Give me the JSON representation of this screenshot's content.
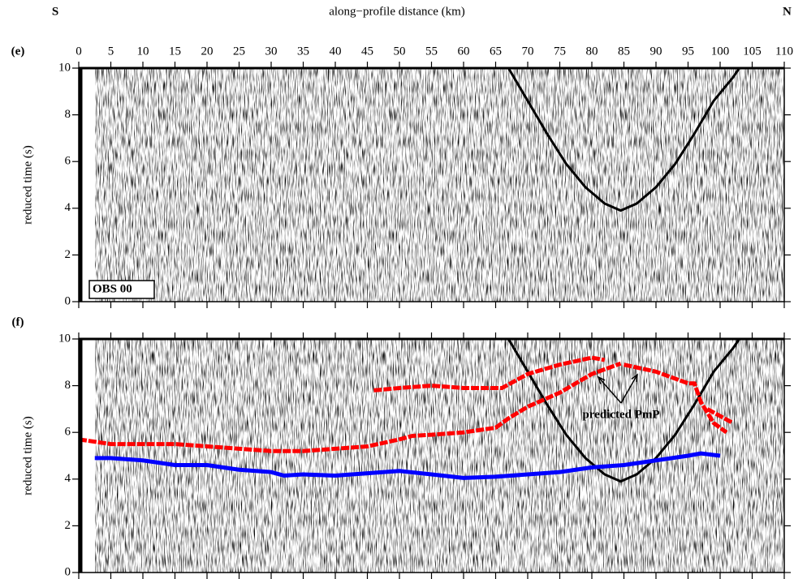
{
  "chart_data": [
    {
      "type": "line",
      "panel_label": "(e)",
      "xlabel": "along−profile distance (km)",
      "ylabel": "reduced time (s)",
      "annotations": [
        "S",
        "N",
        "OBS 00"
      ],
      "xlim": [
        0,
        110
      ],
      "xticks": [
        0,
        5,
        10,
        15,
        20,
        25,
        30,
        35,
        40,
        45,
        50,
        55,
        60,
        65,
        70,
        75,
        80,
        85,
        90,
        95,
        100,
        105,
        110
      ],
      "ylim": [
        0,
        10
      ],
      "yticks": [
        0,
        2,
        4,
        6,
        8,
        10
      ],
      "xtick_labels": true,
      "series": [
        {
          "color": "#000000",
          "x": [
            67,
            70,
            73,
            76,
            79,
            82,
            84.5,
            87,
            90,
            93,
            96,
            99,
            102,
            103
          ],
          "values": [
            10,
            8.6,
            7.2,
            5.9,
            4.9,
            4.2,
            3.9,
            4.2,
            4.9,
            5.9,
            7.2,
            8.6,
            9.6,
            10
          ]
        }
      ]
    },
    {
      "type": "line",
      "panel_label": "(f)",
      "ylabel": "reduced time (s)",
      "annotations": [
        "predicted PmP"
      ],
      "xlim": [
        0,
        110
      ],
      "xticks": [
        0,
        5,
        10,
        15,
        20,
        25,
        30,
        35,
        40,
        45,
        50,
        55,
        60,
        65,
        70,
        75,
        80,
        85,
        90,
        95,
        100,
        105,
        110
      ],
      "ylim": [
        0,
        10
      ],
      "yticks": [
        0,
        2,
        4,
        6,
        8,
        10
      ],
      "xtick_labels": false,
      "series": [
        {
          "color": "#000000",
          "x": [
            67,
            70,
            73,
            76,
            79,
            82,
            84.5,
            87,
            90,
            93,
            96,
            99,
            102,
            103
          ],
          "values": [
            10,
            8.6,
            7.2,
            5.9,
            4.9,
            4.2,
            3.9,
            4.2,
            4.9,
            5.9,
            7.2,
            8.6,
            9.6,
            10
          ]
        },
        {
          "color": "#ff0000",
          "x": [
            46,
            50,
            55,
            60,
            66,
            70,
            75,
            80,
            82,
            84,
            85,
            90,
            95,
            96,
            97,
            99,
            101
          ],
          "values": [
            7.8,
            7.9,
            8.0,
            7.9,
            7.9,
            8.5,
            8.9,
            9.2,
            9.1,
            null,
            8.9,
            8.6,
            8.1,
            8.1,
            7.3,
            6.4,
            6.0
          ]
        },
        {
          "color": "#ff0000",
          "x": [
            0,
            5,
            10,
            15,
            20,
            25,
            30,
            35,
            40,
            45,
            50,
            52,
            55,
            60,
            65,
            67,
            70,
            75,
            80,
            83,
            84.5,
            96,
            98,
            102,
            103
          ],
          "values": [
            5.7,
            5.5,
            5.5,
            5.5,
            5.4,
            5.3,
            5.2,
            5.2,
            5.3,
            5.4,
            5.7,
            5.85,
            5.9,
            6.0,
            6.2,
            6.6,
            7.1,
            7.7,
            8.5,
            8.8,
            8.95,
            null,
            7.0,
            6.4,
            null
          ]
        },
        {
          "color": "#0000ff",
          "x": [
            2.5,
            5,
            10,
            15,
            20,
            25,
            30,
            32,
            35,
            40,
            45,
            50,
            55,
            60,
            65,
            70,
            75,
            80,
            85,
            90,
            95,
            97,
            100
          ],
          "values": [
            4.9,
            4.9,
            4.8,
            4.6,
            4.6,
            4.4,
            4.3,
            4.15,
            4.2,
            4.15,
            4.25,
            4.35,
            4.2,
            4.05,
            4.1,
            4.2,
            4.3,
            4.5,
            4.6,
            4.8,
            5.0,
            5.1,
            5.0
          ]
        }
      ]
    }
  ]
}
